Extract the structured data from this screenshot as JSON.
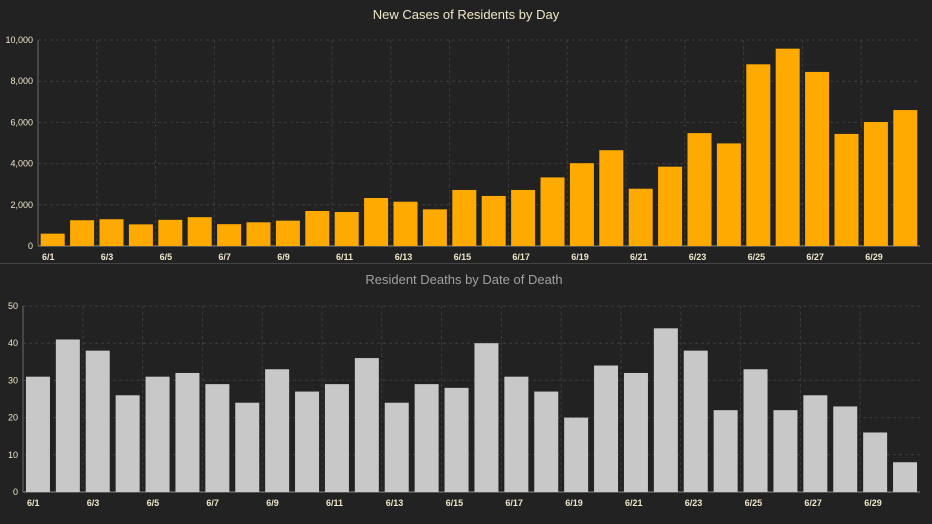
{
  "colors": {
    "background": "#222222",
    "cases_bar": "#FFAA00",
    "deaths_bar": "#C8C8C8",
    "cases_title": "#F0E6C8",
    "deaths_title": "#A0A0A0",
    "tick_text": "#F0E6C8",
    "gridline": "#3C3C3C",
    "separator": "#444444"
  },
  "chart_data": [
    {
      "type": "bar",
      "title": "New Cases of Residents by Day",
      "xlabel": "",
      "ylabel": "",
      "ylim": [
        0,
        10000
      ],
      "yticks": [
        0,
        2000,
        4000,
        6000,
        8000,
        10000
      ],
      "ytick_labels": [
        "0",
        "2,000",
        "4,000",
        "6,000",
        "8,000",
        "10,000"
      ],
      "categories": [
        "6/1",
        "6/2",
        "6/3",
        "6/4",
        "6/5",
        "6/6",
        "6/7",
        "6/8",
        "6/9",
        "6/10",
        "6/11",
        "6/12",
        "6/13",
        "6/14",
        "6/15",
        "6/16",
        "6/17",
        "6/18",
        "6/19",
        "6/20",
        "6/21",
        "6/22",
        "6/23",
        "6/24",
        "6/25",
        "6/26",
        "6/27",
        "6/28",
        "6/29",
        "6/30"
      ],
      "xtick_labels": [
        "6/1",
        "6/3",
        "6/5",
        "6/7",
        "6/9",
        "6/11",
        "6/13",
        "6/15",
        "6/17",
        "6/19",
        "6/21",
        "6/23",
        "6/25",
        "6/27",
        "6/29"
      ],
      "values": [
        600,
        1250,
        1300,
        1050,
        1270,
        1400,
        1060,
        1150,
        1230,
        1700,
        1650,
        2330,
        2150,
        1780,
        2720,
        2430,
        2720,
        3330,
        4020,
        4650,
        2780,
        3850,
        5480,
        4980,
        8820,
        9580,
        8450,
        5440,
        6020,
        6600
      ],
      "grid": true
    },
    {
      "type": "bar",
      "title": "Resident Deaths by Date of Death",
      "xlabel": "",
      "ylabel": "",
      "ylim": [
        0,
        50
      ],
      "yticks": [
        0,
        10,
        20,
        30,
        40,
        50
      ],
      "ytick_labels": [
        "0",
        "10",
        "20",
        "30",
        "40",
        "50"
      ],
      "categories": [
        "6/1",
        "6/2",
        "6/3",
        "6/4",
        "6/5",
        "6/6",
        "6/7",
        "6/8",
        "6/9",
        "6/10",
        "6/11",
        "6/12",
        "6/13",
        "6/14",
        "6/15",
        "6/16",
        "6/17",
        "6/18",
        "6/19",
        "6/20",
        "6/21",
        "6/22",
        "6/23",
        "6/24",
        "6/25",
        "6/26",
        "6/27",
        "6/28",
        "6/29",
        "6/30"
      ],
      "xtick_labels": [
        "6/1",
        "6/3",
        "6/5",
        "6/7",
        "6/9",
        "6/11",
        "6/13",
        "6/15",
        "6/17",
        "6/19",
        "6/21",
        "6/23",
        "6/25",
        "6/27",
        "6/29"
      ],
      "values": [
        31,
        41,
        38,
        26,
        31,
        32,
        29,
        24,
        33,
        27,
        29,
        36,
        24,
        29,
        28,
        40,
        31,
        27,
        20,
        34,
        32,
        44,
        38,
        22,
        33,
        22,
        26,
        23,
        16,
        8
      ],
      "grid": true
    }
  ]
}
